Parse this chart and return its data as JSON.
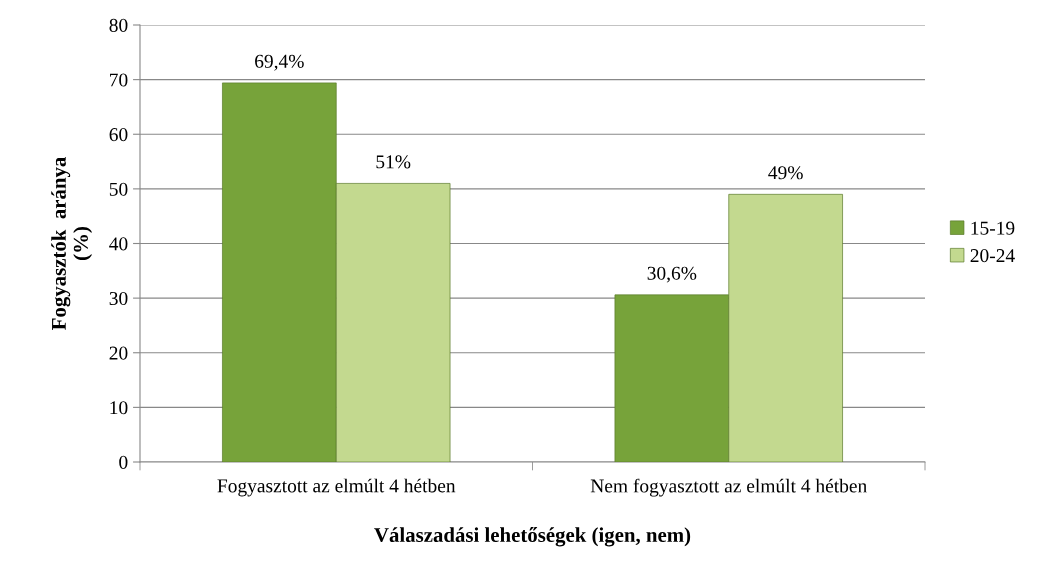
{
  "chart_data": {
    "type": "bar",
    "xlabel": "Válaszadási lehetőségek (igen, nem)",
    "ylabel": "Fogyasztók  aránya\n(%)",
    "categories": [
      "Fogyasztott az elmúlt 4 hétben",
      "Nem fogyasztott az elmúlt 4 hétben"
    ],
    "series": [
      {
        "name": "15-19",
        "color": "#77a33a",
        "values": [
          69.4,
          30.6
        ],
        "value_labels": [
          "69,4%",
          "30,6%"
        ]
      },
      {
        "name": "20-24",
        "color": "#c3d98f",
        "values": [
          51,
          49
        ],
        "value_labels": [
          "51%",
          "49%"
        ]
      }
    ],
    "ylim": [
      0,
      80
    ],
    "yticks": [
      0,
      10,
      20,
      30,
      40,
      50,
      60,
      70,
      80
    ],
    "grid": "y",
    "legend": "right"
  }
}
